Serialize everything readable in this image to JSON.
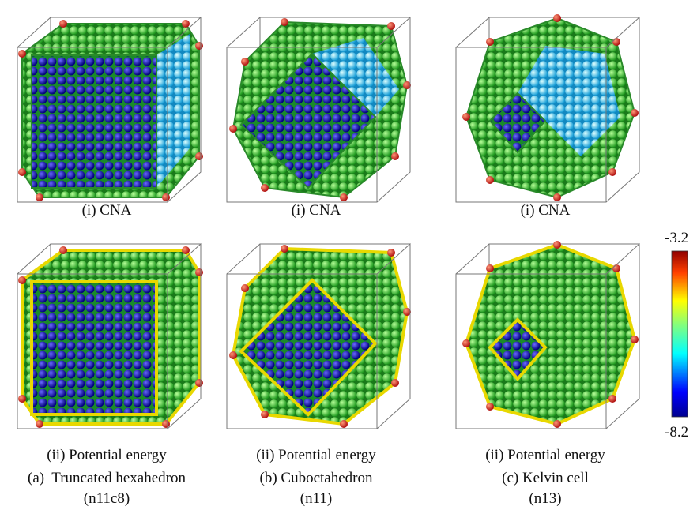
{
  "panels": [
    {
      "cna_caption": "(i) CNA",
      "pe_caption": "(ii) Potential energy",
      "label": "(a)  Truncated hexahedron",
      "code": "(n11c8)"
    },
    {
      "cna_caption": "(i) CNA",
      "pe_caption": "(ii) Potential energy",
      "label": "(b) Cuboctahedron",
      "code": "(n11)"
    },
    {
      "cna_caption": "(i) CNA",
      "pe_caption": "(ii) Potential energy",
      "label": "(c) Kelvin cell",
      "code": "(n13)"
    }
  ],
  "colorbar": {
    "max": -3.2,
    "min": -8.2
  }
}
